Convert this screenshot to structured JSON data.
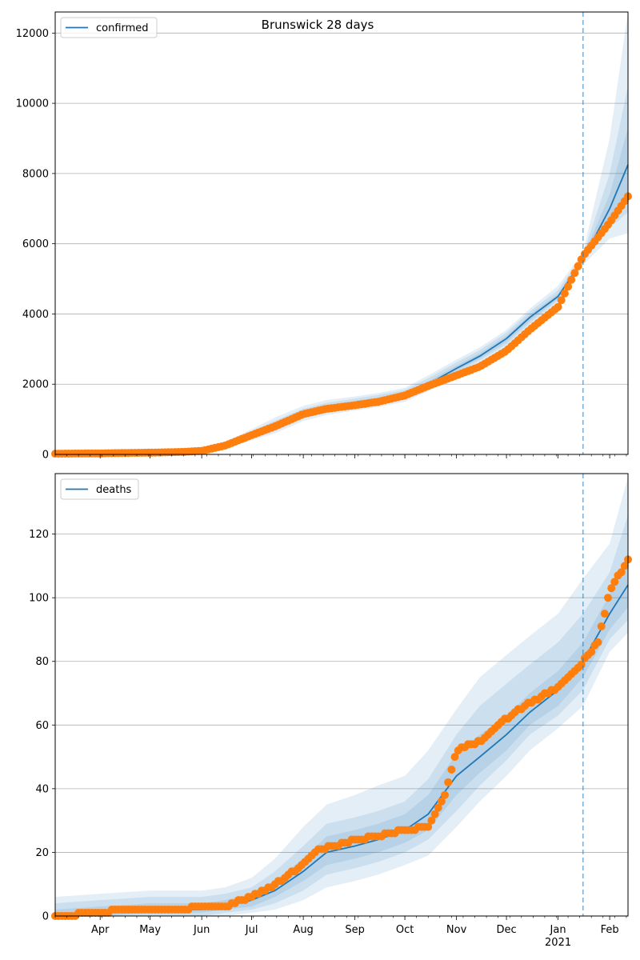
{
  "chart_data": [
    {
      "type": "line",
      "title": "Brunswick 28 days",
      "legend": {
        "label": "confirmed",
        "placement": "top-left"
      },
      "ylim": [
        0,
        12600
      ],
      "yticks": [
        0,
        2000,
        4000,
        6000,
        8000,
        10000,
        12000
      ],
      "grid": "horizontal",
      "colors": {
        "model": "#1f77b4",
        "observed": "#ff7f0e",
        "band": "#1f77b4"
      },
      "forecast_start": "2021-01-16",
      "model_line": {
        "x": [
          "2020-03-05",
          "2020-04-01",
          "2020-05-01",
          "2020-05-20",
          "2020-06-01",
          "2020-06-15",
          "2020-07-01",
          "2020-07-15",
          "2020-08-01",
          "2020-08-15",
          "2020-09-01",
          "2020-09-15",
          "2020-10-01",
          "2020-10-15",
          "2020-11-01",
          "2020-11-15",
          "2020-12-01",
          "2020-12-15",
          "2021-01-01",
          "2021-01-16",
          "2021-02-01",
          "2021-02-12"
        ],
        "y": [
          20,
          30,
          50,
          70,
          100,
          250,
          550,
          800,
          1150,
          1320,
          1450,
          1550,
          1700,
          2000,
          2450,
          2800,
          3300,
          3900,
          4500,
          5550,
          7000,
          8250
        ]
      },
      "bands": [
        {
          "lower": [
            10,
            15,
            30,
            40,
            60,
            180,
            400,
            600,
            950,
            1120,
            1250,
            1350,
            1500,
            1800,
            2250,
            2600,
            3050,
            3650,
            4300,
            5400,
            6150,
            6300
          ],
          "upper": [
            40,
            50,
            80,
            110,
            150,
            350,
            720,
            1050,
            1380,
            1550,
            1650,
            1750,
            1900,
            2250,
            2700,
            3050,
            3550,
            4150,
            4800,
            5750,
            9000,
            12600
          ]
        },
        {
          "lower": [
            15,
            20,
            35,
            50,
            75,
            200,
            450,
            660,
            1020,
            1190,
            1310,
            1410,
            1560,
            1870,
            2320,
            2670,
            3130,
            3730,
            4370,
            5450,
            6450,
            6900
          ],
          "upper": [
            30,
            45,
            70,
            95,
            130,
            310,
            660,
            960,
            1300,
            1470,
            1590,
            1690,
            1840,
            2170,
            2620,
            2970,
            3470,
            4070,
            4680,
            5680,
            8000,
            10500
          ]
        },
        {
          "lower": [
            17,
            25,
            42,
            60,
            85,
            220,
            490,
            720,
            1080,
            1250,
            1380,
            1480,
            1630,
            1930,
            2380,
            2730,
            3200,
            3800,
            4430,
            5500,
            6700,
            7500
          ],
          "upper": [
            25,
            38,
            60,
            85,
            115,
            280,
            610,
            880,
            1230,
            1400,
            1520,
            1620,
            1770,
            2080,
            2530,
            2880,
            3380,
            3980,
            4580,
            5620,
            7400,
            9300
          ]
        }
      ],
      "observed": {
        "x": [
          "2020-03-05",
          "2020-04-01",
          "2020-05-01",
          "2020-05-20",
          "2020-06-01",
          "2020-06-15",
          "2020-07-01",
          "2020-07-15",
          "2020-08-01",
          "2020-08-15",
          "2020-09-01",
          "2020-09-15",
          "2020-10-01",
          "2020-10-15",
          "2020-11-01",
          "2020-11-15",
          "2020-12-01",
          "2020-12-15",
          "2021-01-01",
          "2021-01-16",
          "2021-02-01",
          "2021-02-12"
        ],
        "y": [
          20,
          30,
          50,
          70,
          100,
          250,
          550,
          800,
          1150,
          1300,
          1400,
          1500,
          1680,
          1950,
          2250,
          2500,
          2950,
          3550,
          4200,
          5650,
          6600,
          7350
        ]
      }
    },
    {
      "type": "line",
      "title": "",
      "legend": {
        "label": "deaths",
        "placement": "top-left"
      },
      "ylim": [
        0,
        139
      ],
      "yticks": [
        0,
        20,
        40,
        60,
        80,
        100,
        120
      ],
      "xticks": [
        "Apr",
        "May",
        "Jun",
        "Jul",
        "Aug",
        "Sep",
        "Oct",
        "Nov",
        "Dec",
        "Jan",
        "Feb"
      ],
      "xtick_year": "2021",
      "grid": "horizontal",
      "colors": {
        "model": "#1f77b4",
        "observed": "#ff7f0e",
        "band": "#1f77b4"
      },
      "forecast_start": "2021-01-16",
      "model_line": {
        "x": [
          "2020-03-05",
          "2020-04-01",
          "2020-05-01",
          "2020-06-01",
          "2020-06-15",
          "2020-07-01",
          "2020-07-15",
          "2020-08-01",
          "2020-08-15",
          "2020-09-01",
          "2020-09-15",
          "2020-10-01",
          "2020-10-15",
          "2020-11-01",
          "2020-11-15",
          "2020-12-01",
          "2020-12-15",
          "2021-01-01",
          "2021-01-16",
          "2021-02-01",
          "2021-02-12"
        ],
        "y": [
          0,
          1,
          2,
          2,
          3,
          5,
          8,
          14,
          20,
          22,
          24,
          27,
          32,
          44,
          50,
          57,
          64,
          71,
          80,
          95,
          104
        ]
      },
      "bands": [
        {
          "lower": [
            0,
            0,
            0,
            0,
            0,
            1,
            2,
            5,
            9,
            11,
            13,
            16,
            19,
            28,
            36,
            44,
            52,
            59,
            66,
            83,
            89
          ],
          "upper": [
            6,
            7,
            8,
            8,
            9,
            12,
            18,
            28,
            35,
            38,
            41,
            44,
            52,
            65,
            75,
            82,
            88,
            95,
            106,
            117,
            138
          ]
        },
        {
          "lower": [
            0,
            0,
            0,
            0,
            1,
            2,
            4,
            8,
            13,
            15,
            17,
            20,
            24,
            33,
            41,
            49,
            57,
            63,
            71,
            87,
            93
          ],
          "upper": [
            4,
            5,
            6,
            6,
            7,
            9,
            14,
            22,
            29,
            31,
            33,
            36,
            43,
            57,
            66,
            73,
            79,
            86,
            95,
            108,
            126
          ]
        },
        {
          "lower": [
            0,
            0,
            1,
            1,
            2,
            3,
            6,
            11,
            16,
            18,
            20,
            23,
            27,
            38,
            45,
            52,
            60,
            66,
            75,
            90,
            97
          ],
          "upper": [
            2,
            3,
            4,
            4,
            5,
            7,
            11,
            18,
            25,
            27,
            29,
            32,
            38,
            51,
            57,
            63,
            70,
            77,
            86,
            101,
            114
          ]
        }
      ],
      "observed": {
        "x": [
          "2020-03-05",
          "2020-04-01",
          "2020-04-15",
          "2020-05-01",
          "2020-05-20",
          "2020-06-01",
          "2020-06-15",
          "2020-07-01",
          "2020-07-15",
          "2020-08-01",
          "2020-08-10",
          "2020-08-20",
          "2020-09-01",
          "2020-09-15",
          "2020-10-01",
          "2020-10-15",
          "2020-10-25",
          "2020-11-01",
          "2020-11-15",
          "2020-12-01",
          "2020-12-15",
          "2021-01-01",
          "2021-01-16",
          "2021-01-25",
          "2021-02-01",
          "2021-02-12"
        ],
        "y": [
          0,
          1,
          2,
          2,
          2,
          3,
          3,
          6,
          10,
          16,
          21,
          22,
          24,
          25,
          27,
          28,
          38,
          52,
          55,
          62,
          67,
          72,
          80,
          86,
          102,
          112
        ]
      }
    }
  ]
}
